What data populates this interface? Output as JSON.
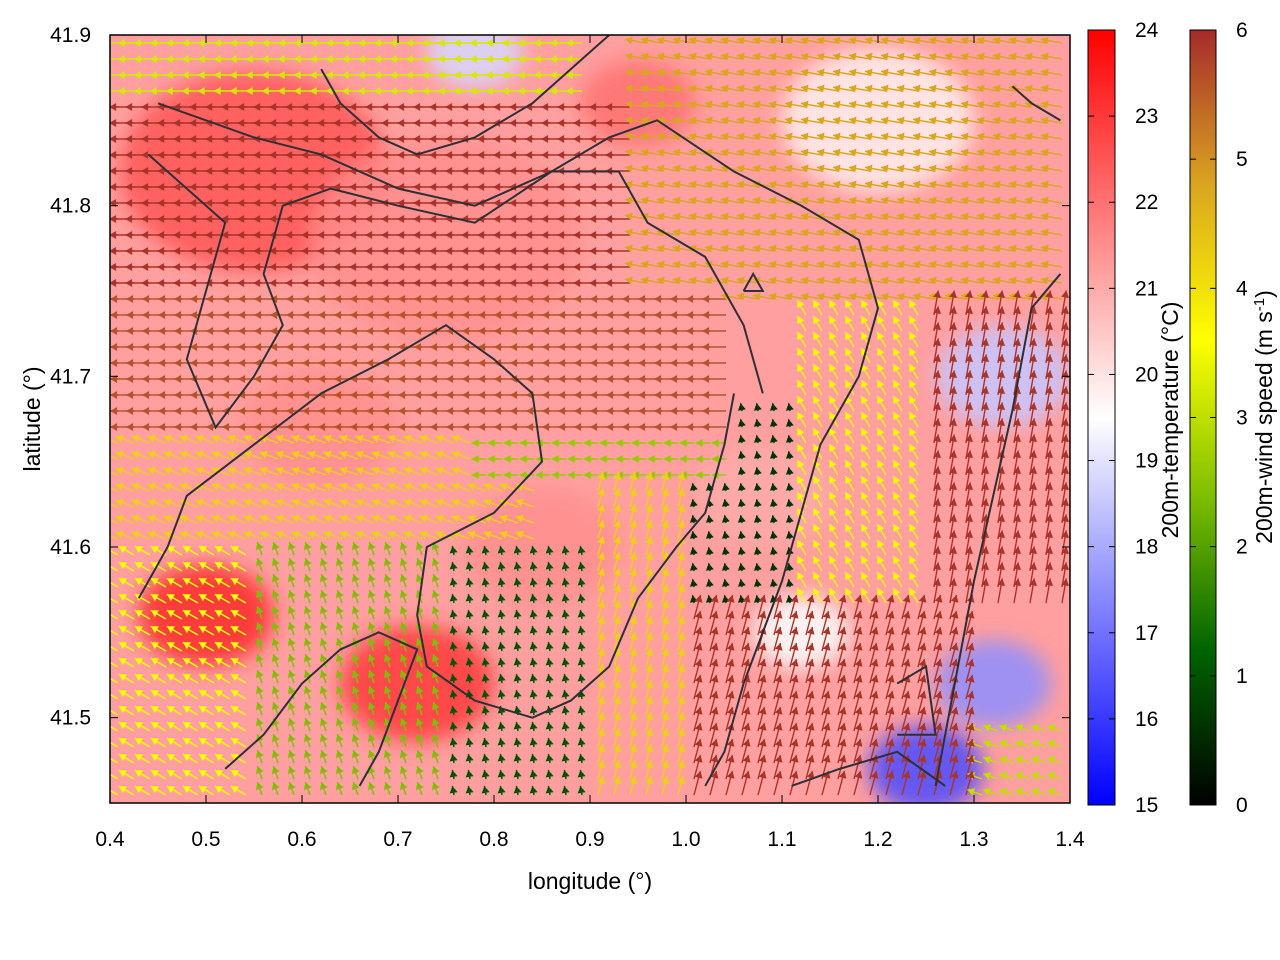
{
  "chart_data": {
    "type": "heatmap",
    "title": "",
    "xlabel": "longitude (°)",
    "ylabel": "latitude (°)",
    "xlim": [
      0.4,
      1.4
    ],
    "ylim": [
      41.45,
      41.9
    ],
    "xticks": [
      "0.4",
      "0.5",
      "0.6",
      "0.7",
      "0.8",
      "0.9",
      "1.0",
      "1.1",
      "1.2",
      "1.3",
      "1.4"
    ],
    "yticks": [
      "41.5",
      "41.6",
      "41.7",
      "41.8",
      "41.9"
    ],
    "grid": false,
    "temperature_colorbar": {
      "label": "200m-temperature (°C)",
      "range": [
        15,
        24
      ],
      "ticks": [
        "15",
        "16",
        "17",
        "18",
        "19",
        "20",
        "21",
        "22",
        "23",
        "24"
      ],
      "colors": [
        "#0000ff",
        "#ffffff",
        "#ff0000"
      ]
    },
    "wind_colorbar": {
      "label_main": "200m-wind speed (m s",
      "label_sup": "-1",
      "label_end": ")",
      "range": [
        0,
        6
      ],
      "ticks": [
        "0",
        "1",
        "2",
        "3",
        "4",
        "5",
        "6"
      ],
      "colors": [
        "#000000",
        "#006400",
        "#7fbf00",
        "#ffff00",
        "#daa520",
        "#a52a2a"
      ]
    },
    "temperature_field": [
      {
        "lon": 0.55,
        "lat": 41.82,
        "t": 22.5,
        "r": 0.14
      },
      {
        "lon": 0.75,
        "lat": 41.78,
        "t": 21.5,
        "r": 0.14
      },
      {
        "lon": 0.5,
        "lat": 41.56,
        "t": 23.3,
        "r": 0.07
      },
      {
        "lon": 0.72,
        "lat": 41.52,
        "t": 23.0,
        "r": 0.08
      },
      {
        "lon": 0.85,
        "lat": 41.6,
        "t": 21.5,
        "r": 0.08
      },
      {
        "lon": 1.08,
        "lat": 41.63,
        "t": 21.0,
        "r": 0.07
      },
      {
        "lon": 0.95,
        "lat": 41.86,
        "t": 22.0,
        "r": 0.06
      },
      {
        "lon": 0.78,
        "lat": 41.89,
        "t": 18.8,
        "r": 0.05
      },
      {
        "lon": 1.2,
        "lat": 41.85,
        "t": 19.8,
        "r": 0.1
      },
      {
        "lon": 1.33,
        "lat": 41.7,
        "t": 18.5,
        "r": 0.07
      },
      {
        "lon": 1.32,
        "lat": 41.52,
        "t": 17.5,
        "r": 0.06
      },
      {
        "lon": 1.25,
        "lat": 41.47,
        "t": 16.3,
        "r": 0.06
      },
      {
        "lon": 1.12,
        "lat": 41.55,
        "t": 19.5,
        "r": 0.05
      },
      {
        "lon": 0.62,
        "lat": 41.67,
        "t": 21.5,
        "r": 0.08
      }
    ],
    "wind_regimes": [
      {
        "lon_min": 0.4,
        "lon_max": 0.95,
        "lat_min": 41.75,
        "lat_max": 41.86,
        "dir_deg": 180,
        "speed": 5.9
      },
      {
        "lon_min": 0.4,
        "lon_max": 1.05,
        "lat_min": 41.67,
        "lat_max": 41.75,
        "dir_deg": 180,
        "speed": 5.6
      },
      {
        "lon_min": 0.95,
        "lon_max": 1.4,
        "lat_min": 41.74,
        "lat_max": 41.9,
        "dir_deg": 170,
        "speed": 4.8
      },
      {
        "lon_min": 0.4,
        "lon_max": 0.9,
        "lat_min": 41.86,
        "lat_max": 41.9,
        "dir_deg": 180,
        "speed": 3.2
      },
      {
        "lon_min": 0.78,
        "lon_max": 1.05,
        "lat_min": 41.64,
        "lat_max": 41.7,
        "dir_deg": 180,
        "speed": 2.6
      },
      {
        "lon_min": 0.4,
        "lon_max": 0.85,
        "lat_min": 41.6,
        "lat_max": 41.67,
        "dir_deg": 160,
        "speed": 4.2
      },
      {
        "lon_min": 0.4,
        "lon_max": 0.55,
        "lat_min": 41.45,
        "lat_max": 41.6,
        "dir_deg": 150,
        "speed": 3.6
      },
      {
        "lon_min": 0.55,
        "lon_max": 0.75,
        "lat_min": 41.45,
        "lat_max": 41.6,
        "dir_deg": 110,
        "speed": 2.4
      },
      {
        "lon_min": 0.75,
        "lon_max": 0.9,
        "lat_min": 41.45,
        "lat_max": 41.6,
        "dir_deg": 100,
        "speed": 1.0
      },
      {
        "lon_min": 0.9,
        "lon_max": 1.0,
        "lat_min": 41.45,
        "lat_max": 41.64,
        "dir_deg": 75,
        "speed": 4.2
      },
      {
        "lon_min": 1.0,
        "lon_max": 1.12,
        "lat_min": 41.56,
        "lat_max": 41.68,
        "dir_deg": 100,
        "speed": 0.6
      },
      {
        "lon_min": 1.0,
        "lon_max": 1.3,
        "lat_min": 41.45,
        "lat_max": 41.56,
        "dir_deg": 75,
        "speed": 5.9
      },
      {
        "lon_min": 1.12,
        "lon_max": 1.25,
        "lat_min": 41.56,
        "lat_max": 41.74,
        "dir_deg": 120,
        "speed": 3.5
      },
      {
        "lon_min": 1.25,
        "lon_max": 1.4,
        "lat_min": 41.56,
        "lat_max": 41.74,
        "dir_deg": 80,
        "speed": 5.9
      },
      {
        "lon_min": 1.2,
        "lon_max": 1.4,
        "lat_min": 41.45,
        "lat_max": 41.5,
        "dir_deg": 160,
        "speed": 3.0
      }
    ],
    "boundaries": [
      {
        "name": "",
        "points": [
          [
            0.45,
            41.86
          ],
          [
            0.55,
            41.84
          ],
          [
            0.62,
            41.83
          ],
          [
            0.7,
            41.81
          ],
          [
            0.78,
            41.8
          ],
          [
            0.86,
            41.82
          ],
          [
            0.92,
            41.84
          ],
          [
            0.97,
            41.85
          ],
          [
            1.05,
            41.82
          ],
          [
            1.12,
            41.8
          ],
          [
            1.18,
            41.78
          ],
          [
            1.2,
            41.74
          ],
          [
            1.18,
            41.7
          ],
          [
            1.14,
            41.66
          ],
          [
            1.12,
            41.62
          ],
          [
            1.1,
            41.58
          ],
          [
            1.06,
            41.52
          ],
          [
            1.04,
            41.48
          ],
          [
            1.02,
            41.46
          ]
        ]
      },
      {
        "name": "",
        "points": [
          [
            0.44,
            41.83
          ],
          [
            0.48,
            41.81
          ],
          [
            0.52,
            41.79
          ],
          [
            0.5,
            41.75
          ],
          [
            0.48,
            41.71
          ],
          [
            0.51,
            41.67
          ],
          [
            0.55,
            41.7
          ],
          [
            0.58,
            41.73
          ],
          [
            0.56,
            41.76
          ],
          [
            0.58,
            41.8
          ],
          [
            0.63,
            41.81
          ],
          [
            0.7,
            41.8
          ],
          [
            0.78,
            41.79
          ],
          [
            0.86,
            41.82
          ],
          [
            0.93,
            41.82
          ],
          [
            0.96,
            41.79
          ],
          [
            1.02,
            41.77
          ],
          [
            1.06,
            41.73
          ],
          [
            1.08,
            41.69
          ]
        ]
      },
      {
        "name": "",
        "points": [
          [
            0.43,
            41.57
          ],
          [
            0.46,
            41.6
          ],
          [
            0.48,
            41.63
          ],
          [
            0.55,
            41.66
          ],
          [
            0.62,
            41.69
          ],
          [
            0.69,
            41.71
          ],
          [
            0.75,
            41.73
          ],
          [
            0.8,
            41.71
          ],
          [
            0.84,
            41.69
          ],
          [
            0.85,
            41.65
          ],
          [
            0.8,
            41.62
          ],
          [
            0.73,
            41.6
          ],
          [
            0.72,
            41.56
          ],
          [
            0.73,
            41.53
          ],
          [
            0.78,
            41.51
          ],
          [
            0.84,
            41.5
          ],
          [
            0.88,
            41.51
          ],
          [
            0.92,
            41.53
          ],
          [
            0.95,
            41.57
          ],
          [
            0.99,
            41.6
          ],
          [
            1.02,
            41.62
          ],
          [
            1.04,
            41.66
          ],
          [
            1.05,
            41.69
          ]
        ]
      },
      {
        "name": "",
        "points": [
          [
            0.52,
            41.47
          ],
          [
            0.56,
            41.49
          ],
          [
            0.6,
            41.52
          ],
          [
            0.64,
            41.54
          ],
          [
            0.68,
            41.55
          ],
          [
            0.72,
            41.54
          ],
          [
            0.7,
            41.51
          ],
          [
            0.68,
            41.48
          ],
          [
            0.66,
            41.46
          ]
        ]
      },
      {
        "name": "",
        "points": [
          [
            1.11,
            41.46
          ],
          [
            1.16,
            41.47
          ],
          [
            1.22,
            41.48
          ],
          [
            1.27,
            41.46
          ]
        ]
      },
      {
        "name": "",
        "points": [
          [
            1.26,
            41.46
          ],
          [
            1.28,
            41.52
          ],
          [
            1.3,
            41.58
          ],
          [
            1.32,
            41.63
          ],
          [
            1.34,
            41.68
          ],
          [
            1.36,
            41.74
          ],
          [
            1.39,
            41.76
          ]
        ]
      },
      {
        "name": "",
        "points": [
          [
            1.22,
            41.52
          ],
          [
            1.25,
            41.53
          ],
          [
            1.26,
            41.49
          ],
          [
            1.22,
            41.49
          ]
        ]
      },
      {
        "name": "",
        "points": [
          [
            0.62,
            41.88
          ],
          [
            0.64,
            41.86
          ],
          [
            0.68,
            41.84
          ],
          [
            0.72,
            41.83
          ],
          [
            0.78,
            41.84
          ],
          [
            0.84,
            41.86
          ],
          [
            0.88,
            41.88
          ],
          [
            0.92,
            41.9
          ]
        ]
      },
      {
        "name": "",
        "points": [
          [
            1.34,
            41.87
          ],
          [
            1.36,
            41.86
          ],
          [
            1.39,
            41.85
          ]
        ]
      },
      {
        "name": "",
        "points": [
          [
            1.06,
            41.75
          ],
          [
            1.07,
            41.76
          ],
          [
            1.08,
            41.75
          ],
          [
            1.06,
            41.75
          ]
        ]
      }
    ]
  }
}
